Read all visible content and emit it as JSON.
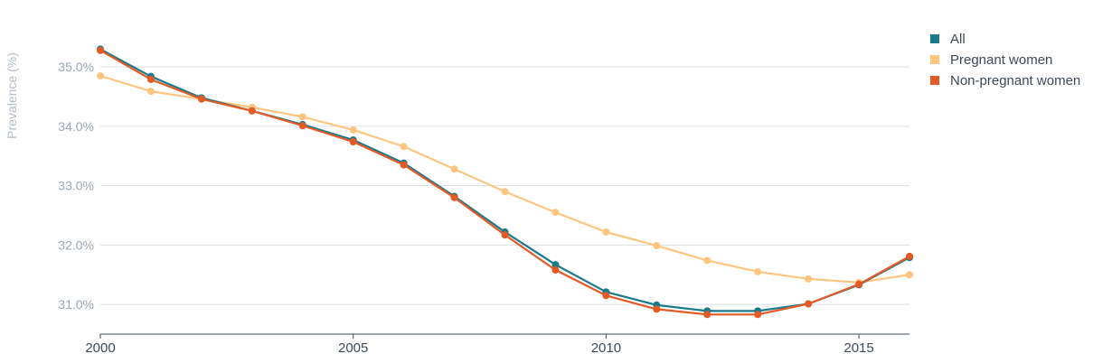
{
  "chart_data": {
    "type": "line",
    "xlabel": "",
    "ylabel": "Prevalence (%)",
    "x": [
      2000,
      2001,
      2002,
      2003,
      2004,
      2005,
      2006,
      2007,
      2008,
      2009,
      2010,
      2011,
      2012,
      2013,
      2014,
      2015,
      2016
    ],
    "x_ticks": [
      2000,
      2005,
      2010,
      2015
    ],
    "y_ticks": [
      31.0,
      32.0,
      33.0,
      34.0,
      35.0
    ],
    "y_tick_labels": [
      "31.0%",
      "32.0%",
      "33.0%",
      "34.0%",
      "35.0%"
    ],
    "xlim": [
      2000,
      2016
    ],
    "ylim": [
      30.5,
      35.55
    ],
    "grid": "horizontal",
    "legend": "top-right",
    "series": [
      {
        "name": "All",
        "color": "#1a7a8c",
        "values": [
          35.3,
          34.84,
          34.48,
          34.26,
          34.03,
          33.77,
          33.38,
          32.82,
          32.22,
          31.67,
          31.21,
          30.99,
          30.89,
          30.89,
          31.01,
          31.33,
          31.79
        ]
      },
      {
        "name": "Pregnant women",
        "color": "#fdc57f",
        "values": [
          34.85,
          34.59,
          34.46,
          34.32,
          34.16,
          33.94,
          33.66,
          33.28,
          32.9,
          32.55,
          32.22,
          31.99,
          31.74,
          31.55,
          31.43,
          31.37,
          31.5
        ]
      },
      {
        "name": "Non-pregnant women",
        "color": "#e35a24",
        "values": [
          35.28,
          34.79,
          34.46,
          34.26,
          34.01,
          33.74,
          33.35,
          32.8,
          32.17,
          31.58,
          31.15,
          30.92,
          30.83,
          30.83,
          31.01,
          31.34,
          31.81
        ]
      }
    ]
  }
}
